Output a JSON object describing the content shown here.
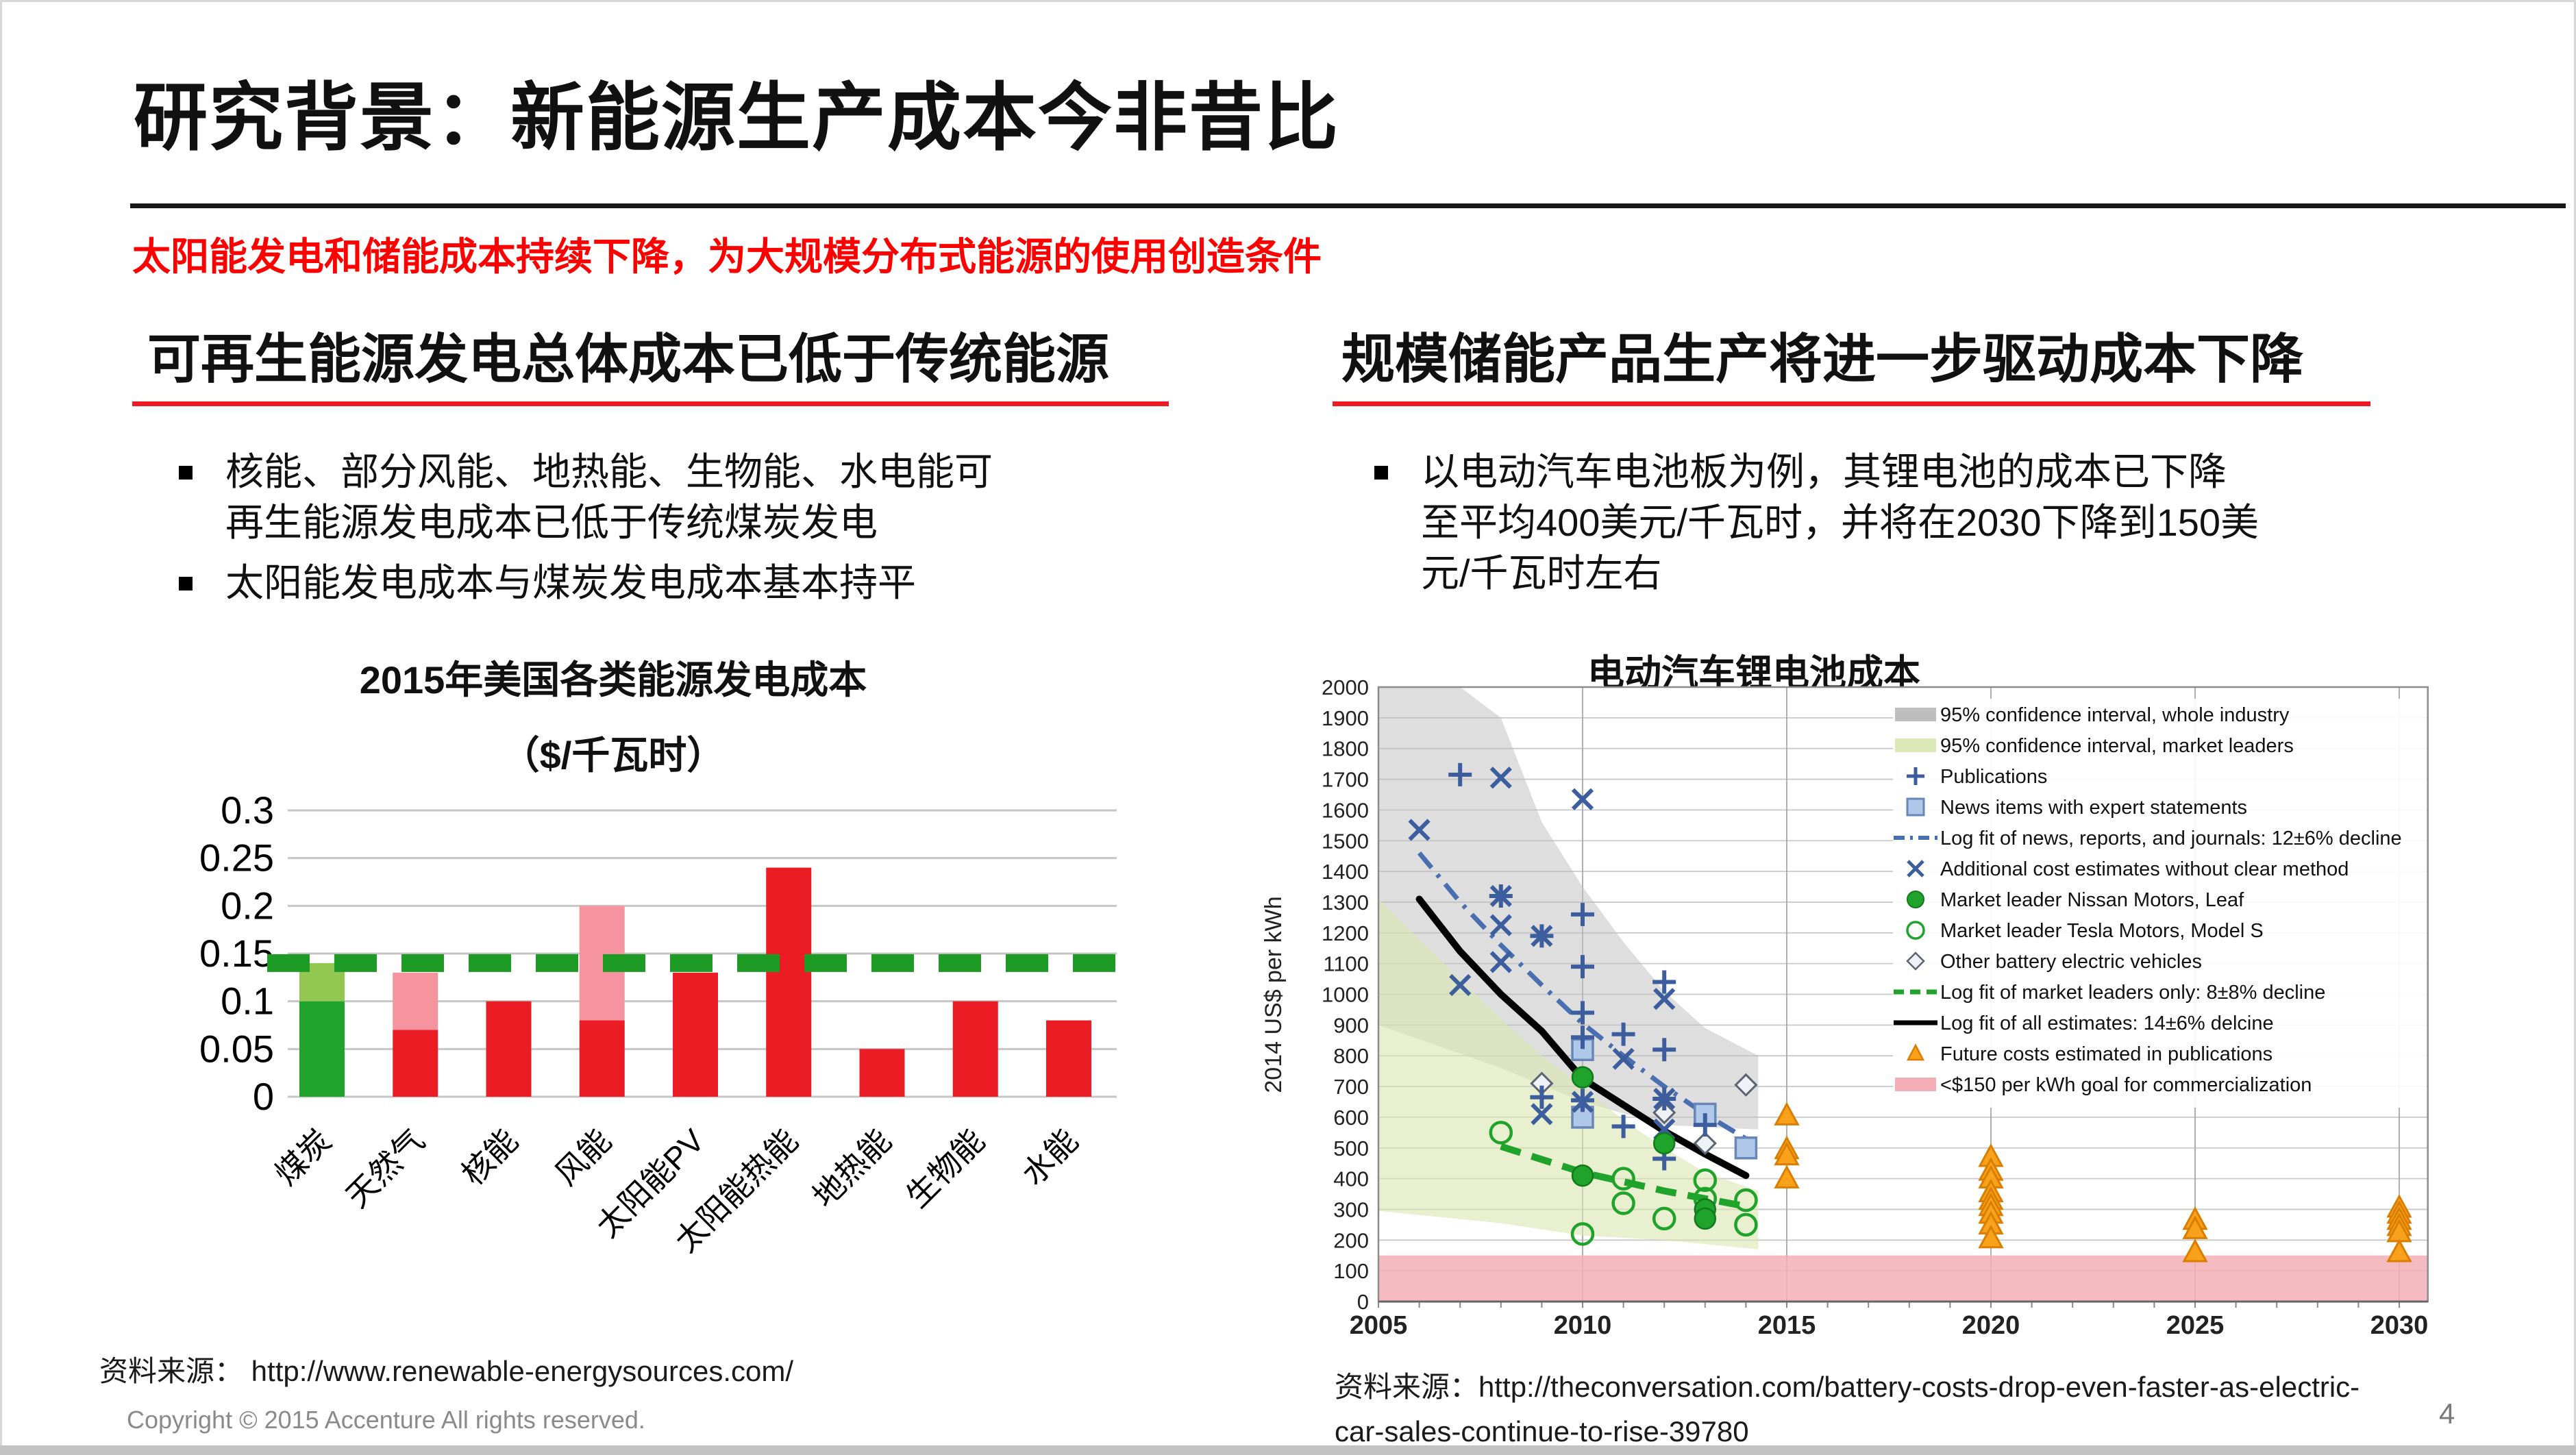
{
  "slide": {
    "title": "研究背景：新能源生产成本今非昔比",
    "subtitle": "太阳能发电和储能成本持续下降，为大规模分布式能源的使用创造条件",
    "page_number": "4",
    "copyright": "Copyright © 2015 Accenture  All rights reserved."
  },
  "left_panel": {
    "header": "可再生能源发电总体成本已低于传统能源",
    "bullets": [
      "核能、部分风能、地热能、生物能、水电能可再生能源发电成本已低于传统煤炭发电",
      "太阳能发电成本与煤炭发电成本基本持平"
    ],
    "source": "资料来源： http://www.renewable-energysources.com/"
  },
  "right_panel": {
    "header": "规模储能产品生产将进一步驱动成本下降",
    "bullets": [
      "以电动汽车电池板为例，其锂电池的成本已下降至平均400美元/千瓦时，并将在2030下降到150美元/千瓦时左右"
    ],
    "source_lines": [
      "资料来源：http://theconversation.com/battery-costs-drop-even-faster-as-electric-",
      "car-sales-continue-to-rise-39780"
    ]
  },
  "chart_data": [
    {
      "type": "bar",
      "title": "2015年美国各类能源发电成本",
      "subtitle": "（$/千瓦时）",
      "xlabel": "",
      "ylabel": "",
      "ylim": [
        0,
        0.3
      ],
      "ytick_step": 0.05,
      "grid": true,
      "reference_line": {
        "value": 0.14,
        "style": "dashed",
        "color": "#1D9B25"
      },
      "colors": {
        "solid_red": "#EC1C24",
        "range_pink": "#F5939E",
        "solid_green": "#1FA32B",
        "range_light_green": "#92C851"
      },
      "bars": [
        {
          "label": "煤炭",
          "solid": 0.1,
          "range_top": 0.14,
          "highlight": true
        },
        {
          "label": "天然气",
          "solid": 0.07,
          "range_top": 0.13,
          "highlight": false
        },
        {
          "label": "核能",
          "solid": 0.1,
          "range_top": null,
          "highlight": false
        },
        {
          "label": "风能",
          "solid": 0.08,
          "range_top": 0.2,
          "highlight": false
        },
        {
          "label": "太阳能PV",
          "solid": 0.13,
          "range_top": null,
          "highlight": false
        },
        {
          "label": "太阳能热能",
          "solid": 0.24,
          "range_top": null,
          "highlight": false
        },
        {
          "label": "地热能",
          "solid": 0.05,
          "range_top": null,
          "highlight": false
        },
        {
          "label": "生物能",
          "solid": 0.1,
          "range_top": null,
          "highlight": false
        },
        {
          "label": "水能",
          "solid": 0.08,
          "range_top": null,
          "highlight": false
        }
      ]
    },
    {
      "type": "scatter",
      "title": "电动汽车锂电池成本",
      "ylabel": "2014 US$ per kWh",
      "xlim": [
        2005,
        2030.7
      ],
      "ylim": [
        0,
        2000
      ],
      "xticks": [
        2005,
        2010,
        2015,
        2020,
        2025,
        2030
      ],
      "ytick_step": 100,
      "grid": true,
      "legend_position": "top-right",
      "goal_band": {
        "min": 0,
        "max": 150,
        "color": "#F4AEB6"
      },
      "bands": {
        "whole_industry": {
          "color": "#BEBEBE",
          "upper": [
            [
              2005,
              2060
            ],
            [
              2007,
              2060
            ],
            [
              2008,
              1900
            ],
            [
              2009,
              1560
            ],
            [
              2010,
              1350
            ],
            [
              2011,
              1170
            ],
            [
              2012,
              1010
            ],
            [
              2013,
              890
            ],
            [
              2014.3,
              800
            ]
          ],
          "lower": [
            [
              2005,
              900
            ],
            [
              2008,
              760
            ],
            [
              2010,
              650
            ],
            [
              2012,
              575
            ],
            [
              2014.3,
              560
            ]
          ]
        },
        "market_leaders": {
          "color": "#D9E6AF",
          "upper": [
            [
              2005,
              1310
            ],
            [
              2007,
              1050
            ],
            [
              2008,
              920
            ],
            [
              2009,
              800
            ],
            [
              2010,
              700
            ],
            [
              2011,
              590
            ],
            [
              2012,
              500
            ],
            [
              2013,
              420
            ],
            [
              2014.3,
              360
            ]
          ],
          "lower": [
            [
              2005,
              295
            ],
            [
              2008,
              255
            ],
            [
              2010,
              215
            ],
            [
              2012,
              200
            ],
            [
              2014.3,
              170
            ]
          ]
        }
      },
      "lines": {
        "news_fit": {
          "color": "#4A6FB0",
          "style": "dash-dot",
          "points": [
            [
              2006,
              1460
            ],
            [
              2007,
              1300
            ],
            [
              2008,
              1160
            ],
            [
              2009,
              1030
            ],
            [
              2010,
              905
            ],
            [
              2011,
              800
            ],
            [
              2012,
              700
            ],
            [
              2013,
              610
            ],
            [
              2014,
              530
            ]
          ]
        },
        "all_fit": {
          "color": "#000000",
          "style": "solid",
          "points": [
            [
              2006,
              1310
            ],
            [
              2007,
              1140
            ],
            [
              2008,
              1000
            ],
            [
              2009,
              880
            ],
            [
              2010,
              725
            ],
            [
              2011,
              640
            ],
            [
              2012,
              555
            ],
            [
              2013,
              480
            ],
            [
              2014,
              410
            ]
          ]
        },
        "leaders_fit": {
          "color": "#1FA32B",
          "style": "dashed",
          "points": [
            [
              2008,
              505
            ],
            [
              2010,
              420
            ],
            [
              2012,
              360
            ],
            [
              2014,
              310
            ]
          ]
        }
      },
      "series": {
        "publications_plus": [
          [
            2007,
            1715
          ],
          [
            2008,
            1320
          ],
          [
            2009,
            1190
          ],
          [
            2009,
            665
          ],
          [
            2010,
            1260
          ],
          [
            2010,
            1090
          ],
          [
            2010,
            940
          ],
          [
            2010,
            860
          ],
          [
            2010,
            655
          ],
          [
            2011,
            870
          ],
          [
            2011,
            570
          ],
          [
            2012,
            1040
          ],
          [
            2012,
            820
          ],
          [
            2012,
            660
          ],
          [
            2012,
            465
          ],
          [
            2013,
            575
          ]
        ],
        "news_squares": [
          [
            2010,
            820
          ],
          [
            2010,
            600
          ],
          [
            2013,
            610
          ],
          [
            2014,
            500
          ]
        ],
        "additional_x": [
          [
            2006,
            1535
          ],
          [
            2007,
            1030
          ],
          [
            2008,
            1705
          ],
          [
            2008,
            1320
          ],
          [
            2008,
            1225
          ],
          [
            2008,
            1105
          ],
          [
            2009,
            1190
          ],
          [
            2009,
            610
          ],
          [
            2010,
            1635
          ],
          [
            2010,
            650
          ],
          [
            2011,
            790
          ],
          [
            2012,
            985
          ],
          [
            2012,
            660
          ],
          [
            2012,
            560
          ]
        ],
        "nissan_leaf": [
          [
            2010,
            730
          ],
          [
            2010,
            410
          ],
          [
            2012,
            515
          ],
          [
            2013,
            300
          ],
          [
            2013,
            270
          ]
        ],
        "tesla_model_s": [
          [
            2008,
            550
          ],
          [
            2010,
            220
          ],
          [
            2011,
            400
          ],
          [
            2011,
            320
          ],
          [
            2012,
            270
          ],
          [
            2013,
            395
          ],
          [
            2013,
            335
          ],
          [
            2014,
            330
          ],
          [
            2014,
            250
          ]
        ],
        "other_bev": [
          [
            2009,
            710
          ],
          [
            2012,
            615
          ],
          [
            2013,
            515
          ],
          [
            2014,
            705
          ]
        ],
        "future_triangles": [
          [
            2015,
            605
          ],
          [
            2015,
            495
          ],
          [
            2015,
            475
          ],
          [
            2015,
            400
          ],
          [
            2020,
            470
          ],
          [
            2020,
            425
          ],
          [
            2020,
            400
          ],
          [
            2020,
            355
          ],
          [
            2020,
            330
          ],
          [
            2020,
            310
          ],
          [
            2020,
            285
          ],
          [
            2020,
            250
          ],
          [
            2020,
            205
          ],
          [
            2025,
            265
          ],
          [
            2025,
            235
          ],
          [
            2025,
            160
          ],
          [
            2030,
            305
          ],
          [
            2030,
            285
          ],
          [
            2030,
            265
          ],
          [
            2030,
            245
          ],
          [
            2030,
            225
          ],
          [
            2030,
            160
          ]
        ]
      },
      "legend": [
        {
          "marker": "band-gray-swatch",
          "label": "95% confidence interval, whole industry"
        },
        {
          "marker": "band-green-swatch",
          "label": "95% confidence interval, market leaders"
        },
        {
          "marker": "plus-icon",
          "label": "Publications"
        },
        {
          "marker": "square-icon",
          "label": "News items with expert statements"
        },
        {
          "marker": "blue-dashdot-line",
          "label": "Log fit of news, reports, and journals: 12±6% decline"
        },
        {
          "marker": "x-icon",
          "label": "Additional cost estimates without clear method"
        },
        {
          "marker": "green-filled-circle",
          "label": "Market leader Nissan Motors, Leaf"
        },
        {
          "marker": "green-open-circle",
          "label": "Market leader Tesla Motors, Model S"
        },
        {
          "marker": "gray-diamond",
          "label": "Other battery electric vehicles"
        },
        {
          "marker": "green-dashed-line",
          "label": "Log fit of market leaders only: 8±8% decline"
        },
        {
          "marker": "black-line",
          "label": "Log fit of all estimates: 14±6% delcine"
        },
        {
          "marker": "orange-triangle",
          "label": "Future costs estimated in publications"
        },
        {
          "marker": "pink-band-swatch",
          "label": "<$150 per kWh goal for commercialization"
        }
      ]
    }
  ]
}
